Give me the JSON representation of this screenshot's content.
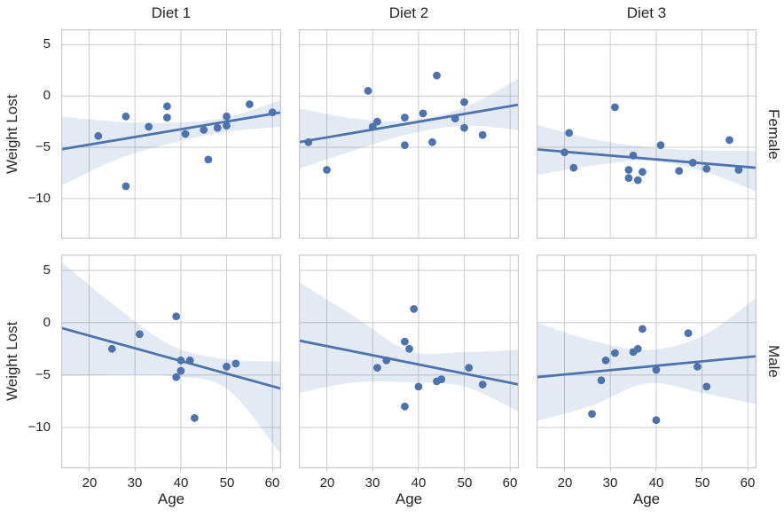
{
  "chart_data": {
    "type": "scatter",
    "title": "",
    "xlabel": "Age",
    "ylabel": "Weight Lost",
    "facet_grid": {
      "col_titles": [
        "Diet 1",
        "Diet 2",
        "Diet 3"
      ],
      "row_labels": [
        "Female",
        "Male"
      ]
    },
    "xlim": [
      13.9,
      61.9
    ],
    "ylim": [
      -13.9,
      6.5
    ],
    "xticks": [
      20,
      30,
      40,
      50,
      60
    ],
    "yticks": [
      5,
      0,
      -5,
      -10
    ],
    "grid": true,
    "legend": false,
    "band_x": [
      13.9,
      26,
      38,
      50,
      61.9
    ],
    "facets": [
      {
        "row": "Female",
        "col": "Diet 1",
        "points": [
          [
            22,
            -3.9
          ],
          [
            28,
            -2.0
          ],
          [
            28,
            -8.8
          ],
          [
            33,
            -3.0
          ],
          [
            37,
            -1.0
          ],
          [
            37,
            -2.1
          ],
          [
            41,
            -3.7
          ],
          [
            45,
            -3.3
          ],
          [
            46,
            -6.2
          ],
          [
            48,
            -3.1
          ],
          [
            50,
            -2.0
          ],
          [
            50,
            -2.9
          ],
          [
            55,
            -0.8
          ],
          [
            60,
            -1.6
          ]
        ],
        "regression_line": {
          "x": [
            13.9,
            61.9
          ],
          "y": [
            -5.2,
            -1.6
          ]
        },
        "ci_band": {
          "top": [
            -2.0,
            -2.5,
            -2.6,
            -2.1,
            -0.35
          ],
          "bottom": [
            -8.8,
            -6.2,
            -4.6,
            -3.5,
            -3.0
          ]
        }
      },
      {
        "row": "Female",
        "col": "Diet 2",
        "points": [
          [
            16,
            -4.5
          ],
          [
            20,
            -7.2
          ],
          [
            29,
            0.5
          ],
          [
            30,
            -3.0
          ],
          [
            31,
            -2.5
          ],
          [
            37,
            -2.1
          ],
          [
            37,
            -4.8
          ],
          [
            41,
            -1.7
          ],
          [
            43,
            -4.5
          ],
          [
            44,
            2.0
          ],
          [
            48,
            -2.2
          ],
          [
            50,
            -0.6
          ],
          [
            50,
            -3.1
          ],
          [
            54,
            -3.8
          ]
        ],
        "regression_line": {
          "x": [
            13.9,
            61.9
          ],
          "y": [
            -4.5,
            -0.85
          ]
        },
        "ci_band": {
          "top": [
            -1.2,
            -2.2,
            -2.4,
            -1.1,
            1.7
          ],
          "bottom": [
            -7.1,
            -5.3,
            -3.7,
            -2.9,
            -3.3
          ]
        }
      },
      {
        "row": "Female",
        "col": "Diet 3",
        "points": [
          [
            20,
            -5.5
          ],
          [
            21,
            -3.6
          ],
          [
            22,
            -7.0
          ],
          [
            31,
            -1.1
          ],
          [
            34,
            -7.2
          ],
          [
            34,
            -8.0
          ],
          [
            35,
            -5.8
          ],
          [
            36,
            -8.2
          ],
          [
            37,
            -7.4
          ],
          [
            41,
            -4.8
          ],
          [
            45,
            -7.3
          ],
          [
            48,
            -6.5
          ],
          [
            51,
            -7.1
          ],
          [
            56,
            -4.3
          ],
          [
            58,
            -7.2
          ]
        ],
        "regression_line": {
          "x": [
            13.9,
            61.9
          ],
          "y": [
            -5.2,
            -7.0
          ]
        },
        "ci_band": {
          "top": [
            -2.8,
            -4.2,
            -5.0,
            -5.3,
            -5.35
          ],
          "bottom": [
            -7.7,
            -6.8,
            -6.3,
            -7.3,
            -9.3
          ]
        }
      },
      {
        "row": "Male",
        "col": "Diet 1",
        "points": [
          [
            25,
            -2.5
          ],
          [
            31,
            -1.1
          ],
          [
            39,
            0.6
          ],
          [
            39,
            -5.2
          ],
          [
            40,
            -3.6
          ],
          [
            40,
            -4.6
          ],
          [
            42,
            -3.6
          ],
          [
            43,
            -9.1
          ],
          [
            50,
            -4.2
          ],
          [
            52,
            -3.9
          ]
        ],
        "regression_line": {
          "x": [
            13.9,
            61.9
          ],
          "y": [
            -0.5,
            -6.3
          ]
        },
        "ci_band": {
          "top": [
            5.8,
            1.5,
            -2.2,
            -3.5,
            -3.7
          ],
          "bottom": [
            -5.1,
            -5.0,
            -5.1,
            -6.3,
            -12.6
          ]
        }
      },
      {
        "row": "Male",
        "col": "Diet 2",
        "points": [
          [
            31,
            -4.3
          ],
          [
            33,
            -3.6
          ],
          [
            37,
            -1.8
          ],
          [
            37,
            -8.0
          ],
          [
            38,
            -2.5
          ],
          [
            39,
            1.3
          ],
          [
            40,
            -6.1
          ],
          [
            44,
            -5.6
          ],
          [
            45,
            -5.4
          ],
          [
            51,
            -4.3
          ],
          [
            54,
            -5.9
          ]
        ],
        "regression_line": {
          "x": [
            13.9,
            61.9
          ],
          "y": [
            -1.7,
            -5.9
          ]
        },
        "ci_band": {
          "top": [
            3.9,
            0.6,
            -2.7,
            -2.8,
            -2.6
          ],
          "bottom": [
            -6.7,
            -5.7,
            -5.7,
            -6.1,
            -8.5
          ]
        }
      },
      {
        "row": "Male",
        "col": "Diet 3",
        "points": [
          [
            26,
            -8.7
          ],
          [
            28,
            -5.5
          ],
          [
            29,
            -3.6
          ],
          [
            31,
            -2.9
          ],
          [
            35,
            -2.8
          ],
          [
            36,
            -2.5
          ],
          [
            37,
            -0.6
          ],
          [
            40,
            -4.5
          ],
          [
            40,
            -9.3
          ],
          [
            47,
            -1.0
          ],
          [
            49,
            -4.2
          ],
          [
            51,
            -6.1
          ]
        ],
        "regression_line": {
          "x": [
            13.9,
            61.9
          ],
          "y": [
            -5.2,
            -3.2
          ]
        },
        "ci_band": {
          "top": [
            0.0,
            -1.7,
            -2.6,
            -1.3,
            2.4
          ],
          "bottom": [
            -9.4,
            -7.9,
            -5.8,
            -6.7,
            -7.8
          ]
        }
      }
    ]
  },
  "style": {
    "point_color": "#4c72b0",
    "line_color": "#4c72b0",
    "band_color": "#4c72b0",
    "band_opacity": 0.15,
    "grid_color": "#cccccc",
    "spine_color": "#c9c9c9",
    "text_color": "#262626",
    "background": "#ffffff"
  }
}
